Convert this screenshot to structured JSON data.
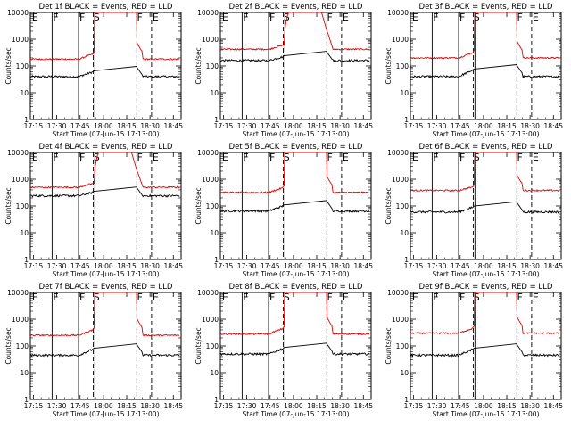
{
  "chart_data": [
    {
      "type": "line",
      "title": "Det 1f BLACK = Events, RED = LLD",
      "xlabel": "Start Time (07-Jun-15 17:13:00)",
      "ylabel": "Counts/sec",
      "x_ticks": [
        "17:15",
        "17:30",
        "17:45",
        "18:00",
        "18:15",
        "18:30",
        "18:45"
      ],
      "y_ticks": [
        "1",
        "10",
        "100",
        "1000",
        "10000"
      ],
      "ylim": [
        1,
        10000
      ],
      "y_scale": "log",
      "markers": [
        "E",
        "F",
        "F",
        "S",
        "F",
        "E"
      ],
      "series": [
        {
          "name": "Events",
          "color": "#000000",
          "base": 40,
          "bump": 60
        },
        {
          "name": "LLD",
          "color": "#e00000",
          "base": 180,
          "bump": 280
        }
      ]
    },
    {
      "type": "line",
      "title": "Det 2f BLACK = Events, RED = LLD",
      "xlabel": "Start Time (07-Jun-15 17:13:00)",
      "ylabel": "Counts/sec",
      "x_ticks": [
        "17:15",
        "17:30",
        "17:45",
        "18:00",
        "18:15",
        "18:30",
        "18:45"
      ],
      "y_ticks": [
        "1",
        "10",
        "100",
        "1000",
        "10000"
      ],
      "ylim": [
        1,
        10000
      ],
      "y_scale": "log",
      "markers": [
        "E",
        "F",
        "F",
        "S",
        "F",
        "E"
      ],
      "series": [
        {
          "name": "Events",
          "color": "#000000",
          "base": 160,
          "bump": 220
        },
        {
          "name": "LLD",
          "color": "#e00000",
          "base": 420,
          "bump": 600
        }
      ]
    },
    {
      "type": "line",
      "title": "Det 3f BLACK = Events, RED = LLD",
      "xlabel": "Start Time (07-Jun-15 17:13:00)",
      "ylabel": "Counts/sec",
      "x_ticks": [
        "17:15",
        "17:30",
        "17:45",
        "18:00",
        "18:15",
        "18:30",
        "18:45"
      ],
      "y_ticks": [
        "1",
        "10",
        "100",
        "1000",
        "10000"
      ],
      "ylim": [
        1,
        10000
      ],
      "y_scale": "log",
      "markers": [
        "E",
        "F",
        "F",
        "S",
        "F",
        "E"
      ],
      "series": [
        {
          "name": "Events",
          "color": "#000000",
          "base": 40,
          "bump": 70
        },
        {
          "name": "LLD",
          "color": "#e00000",
          "base": 200,
          "bump": 320
        }
      ]
    },
    {
      "type": "line",
      "title": "Det 4f BLACK = Events, RED = LLD",
      "xlabel": "Start Time (07-Jun-15 17:13:00)",
      "ylabel": "Counts/sec",
      "x_ticks": [
        "17:15",
        "17:30",
        "17:45",
        "18:00",
        "18:15",
        "18:30",
        "18:45"
      ],
      "y_ticks": [
        "1",
        "10",
        "100",
        "1000",
        "10000"
      ],
      "ylim": [
        1,
        10000
      ],
      "y_scale": "log",
      "markers": [
        "E",
        "F",
        "F",
        "S",
        "F",
        "E"
      ],
      "series": [
        {
          "name": "Events",
          "color": "#000000",
          "base": 240,
          "bump": 320
        },
        {
          "name": "LLD",
          "color": "#e00000",
          "base": 500,
          "bump": 700
        }
      ]
    },
    {
      "type": "line",
      "title": "Det 5f BLACK = Events, RED = LLD",
      "xlabel": "Start Time (07-Jun-15 17:13:00)",
      "ylabel": "Counts/sec",
      "x_ticks": [
        "17:15",
        "17:30",
        "17:45",
        "18:00",
        "18:15",
        "18:30",
        "18:45"
      ],
      "y_ticks": [
        "1",
        "10",
        "100",
        "1000",
        "10000"
      ],
      "ylim": [
        1,
        10000
      ],
      "y_scale": "log",
      "markers": [
        "E",
        "F",
        "F",
        "S",
        "F",
        "E"
      ],
      "series": [
        {
          "name": "Events",
          "color": "#000000",
          "base": 65,
          "bump": 100
        },
        {
          "name": "LLD",
          "color": "#e00000",
          "base": 320,
          "bump": 480
        }
      ]
    },
    {
      "type": "line",
      "title": "Det 6f BLACK = Events, RED = LLD",
      "xlabel": "Start Time (07-Jun-15 17:13:00)",
      "ylabel": "Counts/sec",
      "x_ticks": [
        "17:15",
        "17:30",
        "17:45",
        "18:00",
        "18:15",
        "18:30",
        "18:45"
      ],
      "y_ticks": [
        "1",
        "10",
        "100",
        "1000",
        "10000"
      ],
      "ylim": [
        1,
        10000
      ],
      "y_scale": "log",
      "markers": [
        "E",
        "F",
        "F",
        "S",
        "F",
        "E"
      ],
      "series": [
        {
          "name": "Events",
          "color": "#000000",
          "base": 60,
          "bump": 90
        },
        {
          "name": "LLD",
          "color": "#e00000",
          "base": 380,
          "bump": 520
        }
      ]
    },
    {
      "type": "line",
      "title": "Det 7f BLACK = Events, RED = LLD",
      "xlabel": "Start Time (07-Jun-15 17:13:00)",
      "ylabel": "Counts/sec",
      "x_ticks": [
        "17:15",
        "17:30",
        "17:45",
        "18:00",
        "18:15",
        "18:30",
        "18:45"
      ],
      "y_ticks": [
        "1",
        "10",
        "100",
        "1000",
        "10000"
      ],
      "ylim": [
        1,
        10000
      ],
      "y_scale": "log",
      "markers": [
        "E",
        "F",
        "F",
        "S",
        "F",
        "E"
      ],
      "series": [
        {
          "name": "Events",
          "color": "#000000",
          "base": 45,
          "bump": 75
        },
        {
          "name": "LLD",
          "color": "#e00000",
          "base": 250,
          "bump": 400
        }
      ]
    },
    {
      "type": "line",
      "title": "Det 8f BLACK = Events, RED = LLD",
      "xlabel": "Start Time (07-Jun-15 17:13:00)",
      "ylabel": "Counts/sec",
      "x_ticks": [
        "17:15",
        "17:30",
        "17:45",
        "18:00",
        "18:15",
        "18:30",
        "18:45"
      ],
      "y_ticks": [
        "1",
        "10",
        "100",
        "1000",
        "10000"
      ],
      "ylim": [
        1,
        10000
      ],
      "y_scale": "log",
      "markers": [
        "E",
        "F",
        "F",
        "S",
        "F",
        "E"
      ],
      "series": [
        {
          "name": "Events",
          "color": "#000000",
          "base": 50,
          "bump": 80
        },
        {
          "name": "LLD",
          "color": "#e00000",
          "base": 280,
          "bump": 450
        }
      ]
    },
    {
      "type": "line",
      "title": "Det 9f BLACK = Events, RED = LLD",
      "xlabel": "Start Time (07-Jun-15 17:13:00)",
      "ylabel": "Counts/sec",
      "x_ticks": [
        "17:15",
        "17:30",
        "17:45",
        "18:00",
        "18:15",
        "18:30",
        "18:45"
      ],
      "y_ticks": [
        "1",
        "10",
        "100",
        "1000",
        "10000"
      ],
      "ylim": [
        1,
        10000
      ],
      "y_scale": "log",
      "markers": [
        "E",
        "F",
        "F",
        "S",
        "F",
        "E"
      ],
      "series": [
        {
          "name": "Events",
          "color": "#000000",
          "base": 45,
          "bump": 75
        },
        {
          "name": "LLD",
          "color": "#e00000",
          "base": 300,
          "bump": 460
        }
      ]
    }
  ]
}
